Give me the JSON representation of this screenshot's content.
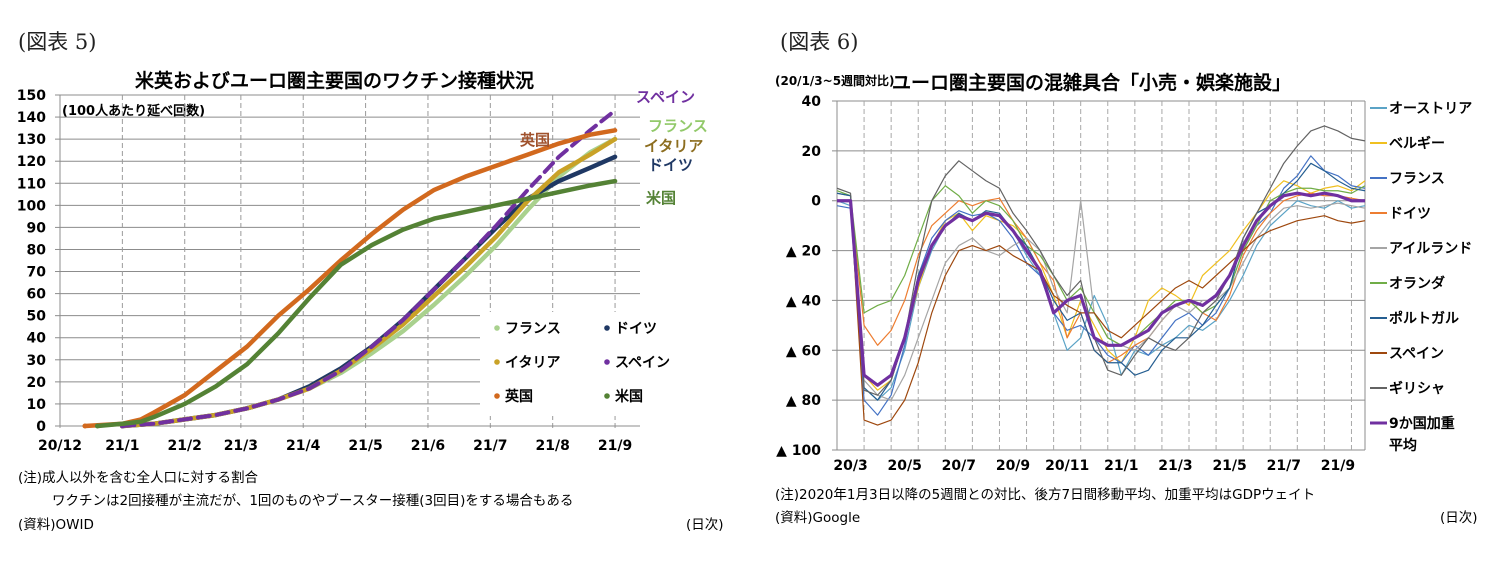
{
  "figure5": {
    "label": "(図表 5)",
    "note_lines": [
      "(注)成人以外を含む全人口に対する割合",
      "ワクチンは2回接種が主流だが、1回のものやブースター接種(3回目)をする場合もある"
    ],
    "source": "(資料)OWID",
    "unit_right": "(日次)"
  },
  "figure6": {
    "label": "(図表 6)",
    "note": "(注)2020年1月3日以降の5週間との対比、後方7日間移動平均、加重平均はGDPウェイト",
    "source": "(資料)Google",
    "unit_right": "(日次)"
  },
  "chart_data": [
    {
      "type": "line",
      "title": "米英およびユーロ圏主要国のワクチン接種状況",
      "ylabel": "(100人あたり延べ回数)",
      "xlabel": "",
      "ylim": [
        0,
        150
      ],
      "yticks": [
        0,
        10,
        20,
        30,
        40,
        50,
        60,
        70,
        80,
        90,
        100,
        110,
        120,
        130,
        140,
        150
      ],
      "xlim": [
        0,
        9.3
      ],
      "xticks": [
        {
          "pos": 0,
          "label": "20/12"
        },
        {
          "pos": 1,
          "label": "21/1"
        },
        {
          "pos": 2,
          "label": "21/2"
        },
        {
          "pos": 2.9,
          "label": "21/3"
        },
        {
          "pos": 3.9,
          "label": "21/4"
        },
        {
          "pos": 4.9,
          "label": "21/5"
        },
        {
          "pos": 5.9,
          "label": "21/6"
        },
        {
          "pos": 6.9,
          "label": "21/7"
        },
        {
          "pos": 7.9,
          "label": "21/8"
        },
        {
          "pos": 8.9,
          "label": "21/9"
        }
      ],
      "grid": true,
      "legend": {
        "position": "bottom-right",
        "columns": 2
      },
      "series": [
        {
          "name": "フランス",
          "color": "#a9d18e",
          "dash": false,
          "label_color": "#92c96a",
          "x": [
            1.0,
            1.5,
            2.0,
            2.5,
            3.0,
            3.5,
            4.0,
            4.5,
            5.0,
            5.5,
            6.0,
            6.5,
            7.0,
            7.5,
            8.0,
            8.5,
            8.9
          ],
          "y": [
            0,
            1,
            3,
            5,
            8,
            12,
            17,
            24,
            33,
            43,
            55,
            68,
            82,
            98,
            113,
            124,
            130
          ]
        },
        {
          "name": "ドイツ",
          "color": "#1f3864",
          "dash": false,
          "label_color": "#1f3864",
          "x": [
            1.0,
            1.5,
            2.0,
            2.5,
            3.0,
            3.5,
            4.0,
            4.5,
            5.0,
            5.5,
            6.0,
            6.5,
            7.0,
            7.5,
            8.0,
            8.5,
            8.9
          ],
          "y": [
            0,
            1,
            3,
            5,
            8,
            12,
            18,
            26,
            36,
            48,
            62,
            76,
            90,
            103,
            111,
            117,
            122
          ]
        },
        {
          "name": "イタリア",
          "color": "#c9a227",
          "dash": false,
          "label_color": "#8c6d1f",
          "x": [
            1.0,
            1.5,
            2.0,
            2.5,
            3.0,
            3.5,
            4.0,
            4.5,
            5.0,
            5.5,
            6.0,
            6.5,
            7.0,
            7.5,
            8.0,
            8.5,
            8.9
          ],
          "y": [
            0,
            1,
            3,
            5,
            8,
            12,
            17,
            25,
            35,
            46,
            59,
            72,
            86,
            102,
            115,
            123,
            130
          ]
        },
        {
          "name": "スペイン",
          "color": "#7030a0",
          "dash": true,
          "label_color": "#7030a0",
          "x": [
            1.0,
            1.5,
            2.0,
            2.5,
            3.0,
            3.5,
            4.0,
            4.5,
            5.0,
            5.5,
            6.0,
            6.5,
            7.0,
            7.5,
            8.0,
            8.5,
            8.9
          ],
          "y": [
            0,
            1,
            3,
            5,
            8,
            12,
            17,
            25,
            36,
            48,
            62,
            76,
            91,
            107,
            122,
            134,
            143
          ]
        },
        {
          "name": "英国",
          "color": "#d2691e",
          "dash": false,
          "label_color": "#a0522d",
          "x": [
            0.4,
            1.0,
            1.3,
            1.5,
            2.0,
            2.5,
            3.0,
            3.5,
            4.0,
            4.5,
            5.0,
            5.5,
            6.0,
            6.5,
            7.0,
            7.5,
            8.0,
            8.5,
            8.9
          ],
          "y": [
            0,
            1,
            3,
            6,
            14,
            25,
            36,
            50,
            62,
            75,
            87,
            98,
            107,
            113,
            118,
            123,
            128,
            132,
            134
          ]
        },
        {
          "name": "米国",
          "color": "#548235",
          "dash": false,
          "label_color": "#548235",
          "x": [
            0.6,
            1.0,
            1.3,
            1.5,
            2.0,
            2.5,
            3.0,
            3.5,
            4.0,
            4.5,
            5.0,
            5.5,
            6.0,
            6.5,
            7.0,
            7.5,
            8.0,
            8.5,
            8.9
          ],
          "y": [
            0,
            1,
            2,
            4,
            10,
            18,
            28,
            42,
            58,
            73,
            82,
            89,
            94,
            97,
            100,
            103,
            106,
            109,
            111
          ]
        }
      ]
    },
    {
      "type": "line",
      "title": "ユーロ圏主要国の混雑具合「小売・娯楽施設」",
      "ylabel": "(20/1/3~5週間対比)",
      "xlabel": "",
      "ylim": [
        -100,
        40
      ],
      "yticks": [
        {
          "value": 40,
          "label": "40"
        },
        {
          "value": 20,
          "label": "20"
        },
        {
          "value": 0,
          "label": "0"
        },
        {
          "value": -20,
          "label": "▲ 20"
        },
        {
          "value": -40,
          "label": "▲ 40"
        },
        {
          "value": -60,
          "label": "▲ 60"
        },
        {
          "value": -80,
          "label": "▲ 80"
        },
        {
          "value": -100,
          "label": "▲ 100"
        }
      ],
      "xlim": [
        0,
        19
      ],
      "xticks": [
        {
          "pos": 0,
          "label": "20/3"
        },
        {
          "pos": 2,
          "label": "20/5"
        },
        {
          "pos": 4,
          "label": "20/7"
        },
        {
          "pos": 6,
          "label": "20/9"
        },
        {
          "pos": 8,
          "label": "20/11"
        },
        {
          "pos": 10,
          "label": "21/1"
        },
        {
          "pos": 12,
          "label": "21/3"
        },
        {
          "pos": 14,
          "label": "21/5"
        },
        {
          "pos": 16,
          "label": "21/7"
        },
        {
          "pos": 18,
          "label": "21/9"
        }
      ],
      "grid": true,
      "legend": {
        "position": "right"
      },
      "x": [
        -0.5,
        0,
        0.5,
        1,
        1.5,
        2,
        2.5,
        3,
        3.5,
        4,
        4.5,
        5,
        5.5,
        6,
        6.5,
        7,
        7.5,
        8,
        8.5,
        9,
        9.5,
        10,
        10.5,
        11,
        11.5,
        12,
        12.5,
        13,
        13.5,
        14,
        14.5,
        15,
        15.5,
        16,
        16.5,
        17,
        17.5,
        18,
        18.5,
        19
      ],
      "series": [
        {
          "name": "オーストリア",
          "color": "#5ba3c6",
          "width": 1.2,
          "y": [
            0,
            -2,
            -75,
            -80,
            -75,
            -60,
            -35,
            -20,
            -10,
            -6,
            -8,
            -5,
            -6,
            -12,
            -22,
            -30,
            -45,
            -60,
            -55,
            -38,
            -50,
            -70,
            -60,
            -62,
            -58,
            -55,
            -50,
            -52,
            -48,
            -40,
            -30,
            -18,
            -10,
            -5,
            0,
            -2,
            -3,
            0,
            -3,
            -2
          ]
        },
        {
          "name": "ベルギー",
          "color": "#f0c020",
          "width": 1.2,
          "y": [
            0,
            0,
            -70,
            -76,
            -72,
            -55,
            -35,
            -18,
            -8,
            -5,
            -12,
            -6,
            -8,
            -10,
            -15,
            -25,
            -38,
            -55,
            -40,
            -50,
            -60,
            -65,
            -55,
            -40,
            -35,
            -38,
            -42,
            -30,
            -25,
            -20,
            -12,
            -5,
            3,
            8,
            6,
            3,
            5,
            6,
            4,
            8
          ]
        },
        {
          "name": "フランス",
          "color": "#4472c4",
          "width": 1.2,
          "y": [
            -2,
            -3,
            -80,
            -86,
            -78,
            -58,
            -30,
            -15,
            -8,
            -4,
            -6,
            -5,
            -8,
            -15,
            -25,
            -30,
            -45,
            -52,
            -50,
            -55,
            -62,
            -65,
            -58,
            -62,
            -55,
            -48,
            -45,
            -50,
            -45,
            -35,
            -20,
            -10,
            -5,
            5,
            10,
            18,
            12,
            10,
            6,
            5
          ]
        },
        {
          "name": "ドイツ",
          "color": "#ed7d31",
          "width": 1.2,
          "y": [
            0,
            0,
            -50,
            -58,
            -52,
            -40,
            -22,
            -10,
            -5,
            0,
            -2,
            0,
            1,
            -8,
            -15,
            -25,
            -32,
            -55,
            -45,
            -60,
            -65,
            -62,
            -58,
            -55,
            -48,
            -42,
            -40,
            -45,
            -48,
            -38,
            -22,
            -12,
            -5,
            0,
            2,
            3,
            2,
            2,
            1,
            0
          ]
        },
        {
          "name": "アイルランド",
          "color": "#a5a5a5",
          "width": 1.2,
          "y": [
            3,
            2,
            -72,
            -78,
            -80,
            -70,
            -55,
            -40,
            -25,
            -18,
            -15,
            -20,
            -22,
            -18,
            -15,
            -20,
            -35,
            -45,
            0,
            -45,
            -55,
            -58,
            -60,
            -55,
            -48,
            -42,
            -45,
            -40,
            -40,
            -35,
            -25,
            -15,
            -8,
            -3,
            -2,
            -3,
            -2,
            -1,
            -2,
            -3
          ]
        },
        {
          "name": "オランダ",
          "color": "#70ad47",
          "width": 1.2,
          "y": [
            4,
            2,
            -45,
            -42,
            -40,
            -30,
            -15,
            0,
            6,
            2,
            -5,
            0,
            -2,
            -8,
            -18,
            -22,
            -30,
            -40,
            -35,
            -45,
            -55,
            -58,
            -55,
            -50,
            -45,
            -40,
            -40,
            -45,
            -42,
            -35,
            -20,
            -10,
            0,
            3,
            5,
            5,
            4,
            4,
            3,
            6
          ]
        },
        {
          "name": "ポルトガル",
          "color": "#255e91",
          "width": 1.2,
          "y": [
            3,
            2,
            -75,
            -80,
            -72,
            -55,
            -30,
            -18,
            -10,
            -5,
            -8,
            -4,
            -5,
            -12,
            -18,
            -28,
            -40,
            -48,
            -45,
            -60,
            -65,
            -65,
            -70,
            -68,
            -60,
            -55,
            -55,
            -50,
            -42,
            -35,
            -15,
            -5,
            -2,
            3,
            8,
            15,
            12,
            8,
            5,
            4
          ]
        },
        {
          "name": "スペイン",
          "color": "#9e480e",
          "width": 1.2,
          "y": [
            0,
            0,
            -88,
            -90,
            -88,
            -80,
            -65,
            -45,
            -30,
            -20,
            -18,
            -20,
            -18,
            -22,
            -25,
            -28,
            -38,
            -42,
            -45,
            -45,
            -52,
            -55,
            -50,
            -45,
            -40,
            -35,
            -32,
            -35,
            -30,
            -25,
            -20,
            -15,
            -12,
            -10,
            -8,
            -7,
            -6,
            -8,
            -9,
            -8
          ]
        },
        {
          "name": "ギリシャ",
          "color": "#636363",
          "width": 1.2,
          "y": [
            5,
            3,
            -76,
            -78,
            -72,
            -55,
            -25,
            0,
            10,
            16,
            12,
            8,
            5,
            -5,
            -12,
            -20,
            -30,
            -38,
            -32,
            -55,
            -68,
            -70,
            -62,
            -55,
            -58,
            -60,
            -55,
            -45,
            -40,
            -30,
            -15,
            -5,
            5,
            15,
            22,
            28,
            30,
            28,
            25,
            24
          ]
        },
        {
          "name": "9か国加重平均",
          "color": "#7030a0",
          "width": 3.2,
          "y": [
            0,
            0,
            -70,
            -74,
            -70,
            -55,
            -32,
            -18,
            -10,
            -6,
            -8,
            -5,
            -6,
            -12,
            -20,
            -28,
            -45,
            -40,
            -38,
            -55,
            -58,
            -58,
            -55,
            -52,
            -45,
            -42,
            -40,
            -42,
            -38,
            -30,
            -18,
            -8,
            -2,
            2,
            3,
            2,
            3,
            2,
            0,
            0
          ]
        }
      ]
    }
  ]
}
